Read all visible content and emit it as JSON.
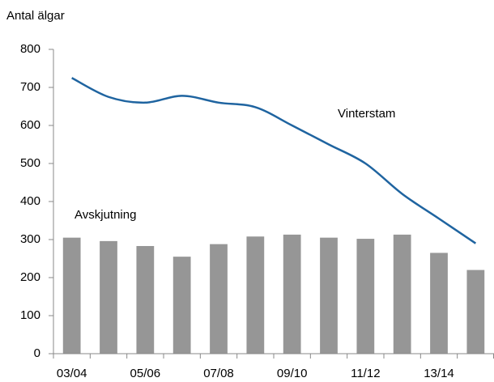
{
  "chart_data": {
    "type": "bar",
    "y_label": "Antal älgar",
    "categories": [
      "03/04",
      null,
      "05/06",
      null,
      "07/08",
      null,
      "09/10",
      null,
      "11/12",
      null,
      "13/14",
      null
    ],
    "series": [
      {
        "name": "Avskjutning",
        "type": "bar",
        "color": "#969696",
        "values": [
          305,
          296,
          283,
          255,
          288,
          308,
          313,
          305,
          302,
          313,
          265,
          220
        ]
      },
      {
        "name": "Vinterstam",
        "type": "line",
        "color": "#1f64a0",
        "values": [
          725,
          675,
          660,
          678,
          660,
          648,
          600,
          550,
          500,
          420,
          355,
          290
        ]
      }
    ],
    "ylim": [
      0,
      800
    ],
    "yticks": [
      0,
      100,
      200,
      300,
      400,
      500,
      600,
      700,
      800
    ],
    "grid": false
  }
}
